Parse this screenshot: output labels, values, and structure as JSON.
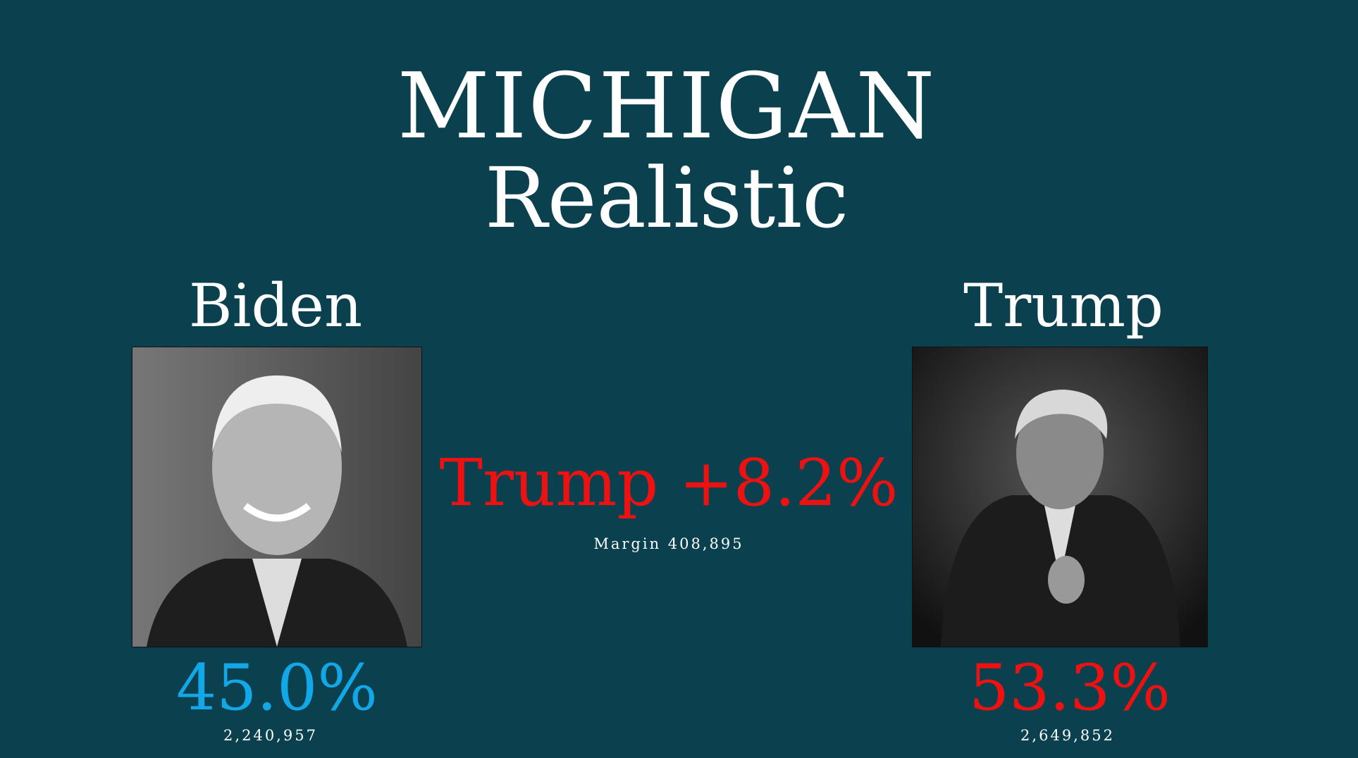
{
  "header": {
    "title": "MICHIGAN",
    "subtitle": "Realistic"
  },
  "candidates": [
    {
      "name": "Biden",
      "percent": "45.0%",
      "votes": "2,240,957"
    },
    {
      "name": "Trump",
      "percent": "53.3%",
      "votes": "2,649,852"
    }
  ],
  "result": {
    "headline": "Trump +8.2%",
    "margin": "Margin 408,895"
  }
}
